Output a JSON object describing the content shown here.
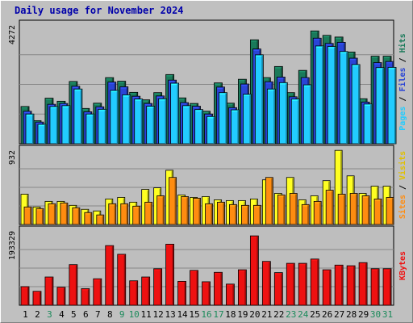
{
  "title": "Daily usage for November 2024",
  "colors": {
    "hits": "#1a7a5a",
    "files": "#2a44d6",
    "pages": "#22ccff",
    "visits": "#ffff22",
    "sites": "#ff8c10",
    "kbytes": "#ee1111",
    "weekend": "#1a8a5a",
    "weekday": "#000000",
    "axis_title_hits": "#1a7a5a",
    "axis_title_files": "#2a44d6",
    "axis_title_pages": "#22ccff",
    "axis_title_visits": "#e0c000",
    "axis_title_sites": "#ff8c10",
    "axis_title_kbytes": "#ee1111",
    "separator": "#000000"
  },
  "chart_data": [
    {
      "type": "bar",
      "panel": "hits-files-pages",
      "max_label": "4272",
      "axis_title": [
        "Pages",
        "Files",
        "Hits"
      ],
      "ylim": [
        0,
        4272
      ],
      "categories": [
        "1",
        "2",
        "3",
        "4",
        "5",
        "6",
        "7",
        "8",
        "9",
        "10",
        "11",
        "12",
        "13",
        "14",
        "15",
        "16",
        "17",
        "18",
        "19",
        "20",
        "21",
        "22",
        "23",
        "24",
        "25",
        "26",
        "27",
        "28",
        "29",
        "30",
        "31"
      ],
      "series": [
        {
          "name": "Hits",
          "values": [
            1340,
            830,
            1640,
            1530,
            2240,
            1270,
            1460,
            2380,
            2250,
            1850,
            1580,
            1840,
            2490,
            1650,
            1450,
            1170,
            2190,
            1460,
            2320,
            3740,
            2380,
            2780,
            1840,
            2640,
            4060,
            3900,
            3840,
            3300,
            1620,
            3150,
            3150
          ]
        },
        {
          "name": "Files",
          "values": [
            1170,
            780,
            1420,
            1450,
            2070,
            1150,
            1330,
            2220,
            2050,
            1710,
            1450,
            1720,
            2290,
            1480,
            1350,
            1070,
            2040,
            1300,
            2150,
            3410,
            2230,
            2400,
            1690,
            2380,
            3800,
            3610,
            3650,
            3080,
            1500,
            2920,
            2960
          ]
        },
        {
          "name": "Pages",
          "values": [
            1070,
            700,
            1340,
            1370,
            1970,
            1070,
            1240,
            1920,
            1760,
            1610,
            1350,
            1620,
            2180,
            1370,
            1230,
            980,
            1840,
            1220,
            1780,
            3200,
            1970,
            2200,
            1610,
            2120,
            3520,
            3500,
            3320,
            2850,
            1430,
            2740,
            2750
          ]
        }
      ]
    },
    {
      "type": "bar",
      "panel": "visits-sites",
      "max_label": "932",
      "axis_title": [
        "Sites",
        "Visits"
      ],
      "ylim": [
        0,
        932
      ],
      "categories": [
        "1",
        "2",
        "3",
        "4",
        "5",
        "6",
        "7",
        "8",
        "9",
        "10",
        "11",
        "12",
        "13",
        "14",
        "15",
        "16",
        "17",
        "18",
        "19",
        "20",
        "21",
        "22",
        "23",
        "24",
        "25",
        "26",
        "27",
        "28",
        "29",
        "30",
        "31"
      ],
      "series": [
        {
          "name": "Visits",
          "values": [
            380,
            220,
            290,
            290,
            240,
            190,
            170,
            320,
            340,
            280,
            440,
            460,
            680,
            370,
            340,
            350,
            310,
            300,
            300,
            320,
            560,
            390,
            590,
            310,
            360,
            550,
            930,
            610,
            390,
            480,
            480
          ]
        },
        {
          "name": "Sites",
          "values": [
            220,
            200,
            260,
            270,
            210,
            150,
            120,
            260,
            260,
            230,
            280,
            360,
            590,
            350,
            330,
            260,
            280,
            250,
            240,
            240,
            590,
            370,
            390,
            250,
            290,
            430,
            380,
            390,
            360,
            320,
            340
          ]
        }
      ]
    },
    {
      "type": "bar",
      "panel": "kbytes",
      "max_label": "193329",
      "axis_title": [
        "KBytes"
      ],
      "ylim": [
        0,
        193329
      ],
      "categories": [
        "1",
        "2",
        "3",
        "4",
        "5",
        "6",
        "7",
        "8",
        "9",
        "10",
        "11",
        "12",
        "13",
        "14",
        "15",
        "16",
        "17",
        "18",
        "19",
        "20",
        "21",
        "22",
        "23",
        "24",
        "25",
        "26",
        "27",
        "28",
        "29",
        "30",
        "31"
      ],
      "series": [
        {
          "name": "KBytes",
          "values": [
            48400,
            36200,
            73500,
            46800,
            105700,
            43100,
            68900,
            155200,
            132600,
            63600,
            73500,
            94900,
            158900,
            62200,
            90700,
            61100,
            85600,
            55000,
            92300,
            180500,
            114100,
            84900,
            109100,
            109100,
            120200,
            92300,
            104500,
            102800,
            110900,
            95000,
            95000
          ]
        }
      ]
    }
  ],
  "day_labels": [
    {
      "label": "1",
      "weekend": false
    },
    {
      "label": "2",
      "weekend": false
    },
    {
      "label": "3",
      "weekend": true
    },
    {
      "label": "4",
      "weekend": false
    },
    {
      "label": "5",
      "weekend": false
    },
    {
      "label": "6",
      "weekend": false
    },
    {
      "label": "7",
      "weekend": false
    },
    {
      "label": "8",
      "weekend": false
    },
    {
      "label": "9",
      "weekend": true
    },
    {
      "label": "10",
      "weekend": true
    },
    {
      "label": "11",
      "weekend": false
    },
    {
      "label": "12",
      "weekend": false
    },
    {
      "label": "13",
      "weekend": false
    },
    {
      "label": "14",
      "weekend": false
    },
    {
      "label": "15",
      "weekend": false
    },
    {
      "label": "16",
      "weekend": true
    },
    {
      "label": "17",
      "weekend": true
    },
    {
      "label": "18",
      "weekend": false
    },
    {
      "label": "19",
      "weekend": false
    },
    {
      "label": "20",
      "weekend": false
    },
    {
      "label": "21",
      "weekend": false
    },
    {
      "label": "22",
      "weekend": false
    },
    {
      "label": "23",
      "weekend": true
    },
    {
      "label": "24",
      "weekend": true
    },
    {
      "label": "25",
      "weekend": false
    },
    {
      "label": "26",
      "weekend": false
    },
    {
      "label": "27",
      "weekend": false
    },
    {
      "label": "28",
      "weekend": false
    },
    {
      "label": "29",
      "weekend": false
    },
    {
      "label": "30",
      "weekend": true
    },
    {
      "label": "31",
      "weekend": true
    }
  ]
}
